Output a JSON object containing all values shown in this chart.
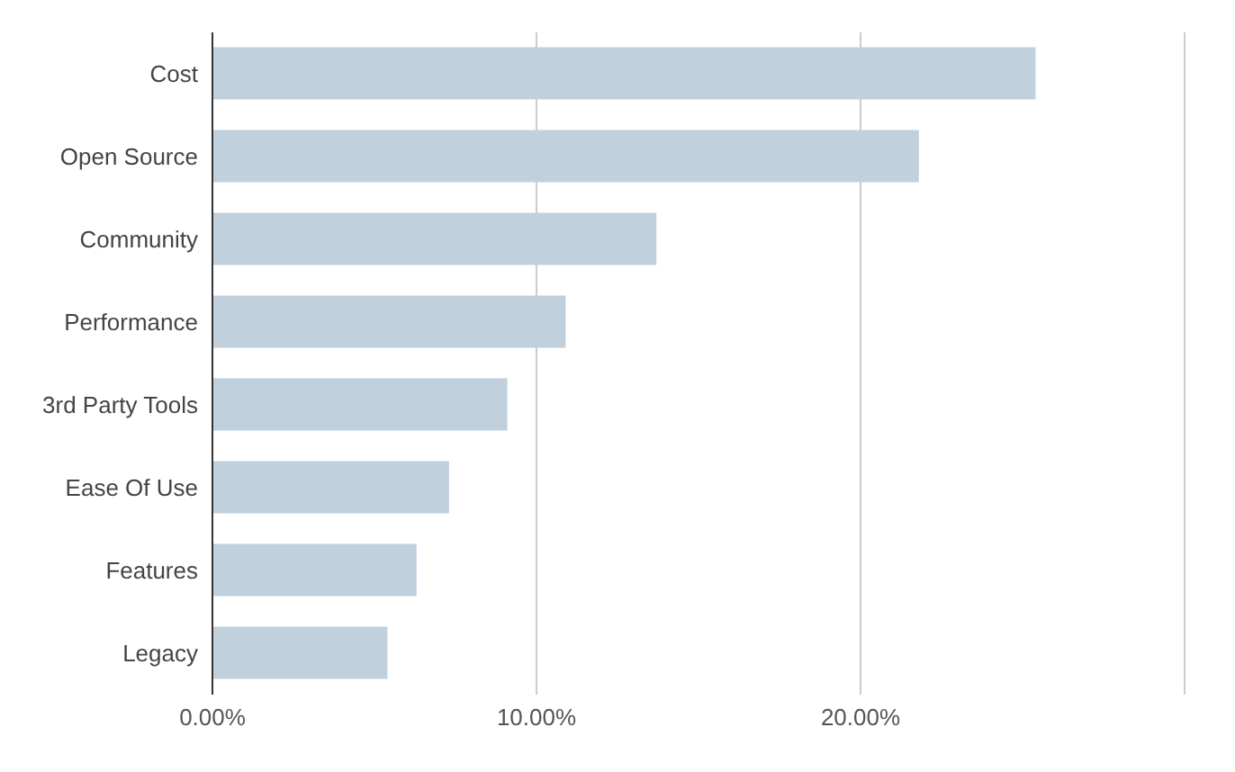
{
  "chart_data": {
    "type": "bar",
    "orientation": "horizontal",
    "categories": [
      "Cost",
      "Open Source",
      "Community",
      "Performance",
      "3rd Party Tools",
      "Ease Of Use",
      "Features",
      "Legacy"
    ],
    "values": [
      25.4,
      21.8,
      13.7,
      10.9,
      9.1,
      7.3,
      6.3,
      5.4
    ],
    "color": "#c1d0dd",
    "xlim": [
      0,
      30
    ],
    "xticks": [
      {
        "value": 0,
        "label": "0.00%"
      },
      {
        "value": 10,
        "label": "10.00%"
      },
      {
        "value": 20,
        "label": "20.00%"
      },
      {
        "value": 30,
        "label": null
      }
    ],
    "grid": "x"
  }
}
